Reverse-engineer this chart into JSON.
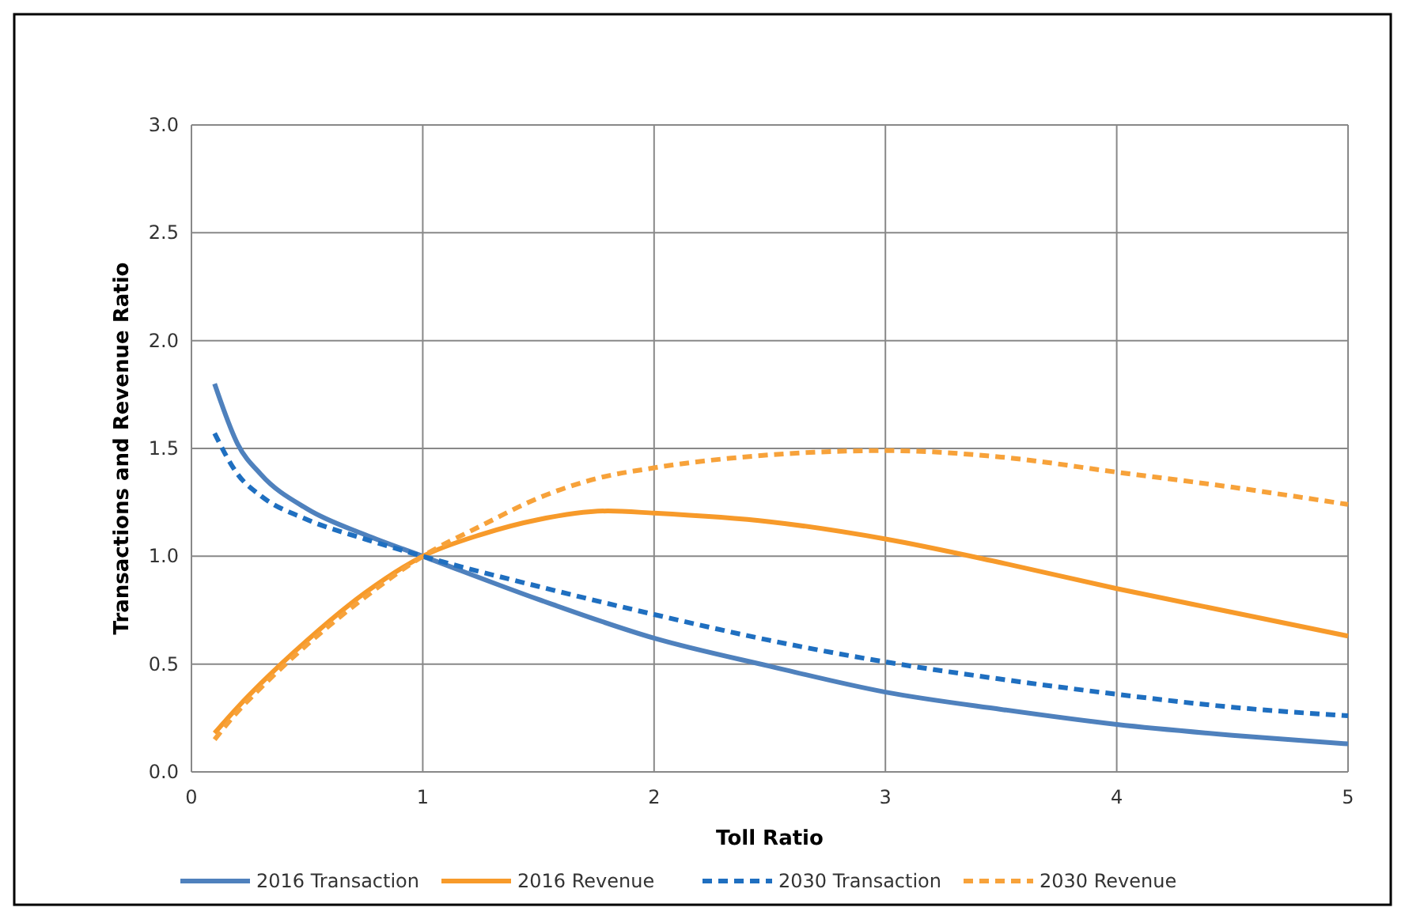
{
  "chart_data": {
    "type": "line",
    "xlabel": "Toll Ratio",
    "ylabel": "Transactions and Revenue Ratio",
    "xlim": [
      0,
      5
    ],
    "xticks": [
      0,
      1,
      2,
      3,
      4,
      5
    ],
    "ylim": [
      0,
      3
    ],
    "yticks": [
      {
        "value": 0,
        "label": "0.0"
      },
      {
        "value": 0.5,
        "label": "0.5"
      },
      {
        "value": 1,
        "label": "1.0"
      },
      {
        "value": 1.5,
        "label": "1.5"
      },
      {
        "value": 2,
        "label": "2.0"
      },
      {
        "value": 2.5,
        "label": "2.5"
      },
      {
        "value": 3,
        "label": "3.0"
      }
    ],
    "grid": true,
    "legend": "bottom",
    "marker": "none",
    "series": [
      {
        "name": "2016 Transaction",
        "color": "#4f81bd",
        "line_style": "solid",
        "x": [
          0.1,
          0.2,
          0.3,
          0.5,
          0.75,
          1,
          1.5,
          2,
          2.5,
          3,
          3.5,
          4,
          4.5,
          5
        ],
        "values": [
          1.8,
          1.52,
          1.38,
          1.22,
          1.1,
          1.0,
          0.8,
          0.62,
          0.49,
          0.37,
          0.29,
          0.22,
          0.17,
          0.13
        ]
      },
      {
        "name": "2016 Revenue",
        "color": "#f79a2a",
        "line_style": "solid",
        "x": [
          0.1,
          0.2,
          0.3,
          0.5,
          0.75,
          1,
          1.25,
          1.5,
          1.8,
          2,
          2.5,
          3,
          3.5,
          4,
          4.5,
          5
        ],
        "values": [
          0.18,
          0.3,
          0.41,
          0.61,
          0.83,
          1.0,
          1.1,
          1.17,
          1.21,
          1.2,
          1.16,
          1.08,
          0.97,
          0.85,
          0.74,
          0.63
        ]
      },
      {
        "name": "2030 Transaction",
        "color": "#1f6fc0",
        "line_style": "dashed",
        "x": [
          0.1,
          0.2,
          0.3,
          0.5,
          0.75,
          1,
          1.5,
          2,
          2.5,
          3,
          3.5,
          4,
          4.5,
          5
        ],
        "values": [
          1.57,
          1.38,
          1.28,
          1.17,
          1.08,
          1.0,
          0.86,
          0.73,
          0.61,
          0.51,
          0.43,
          0.36,
          0.3,
          0.26
        ]
      },
      {
        "name": "2030 Revenue",
        "color": "#f7a23a",
        "line_style": "dashed",
        "x": [
          0.1,
          0.2,
          0.3,
          0.5,
          0.75,
          1,
          1.25,
          1.5,
          1.75,
          2,
          2.5,
          3,
          3.5,
          4,
          4.5,
          5
        ],
        "values": [
          0.15,
          0.28,
          0.39,
          0.59,
          0.81,
          1.0,
          1.14,
          1.27,
          1.36,
          1.41,
          1.47,
          1.49,
          1.46,
          1.39,
          1.32,
          1.24
        ]
      }
    ]
  }
}
